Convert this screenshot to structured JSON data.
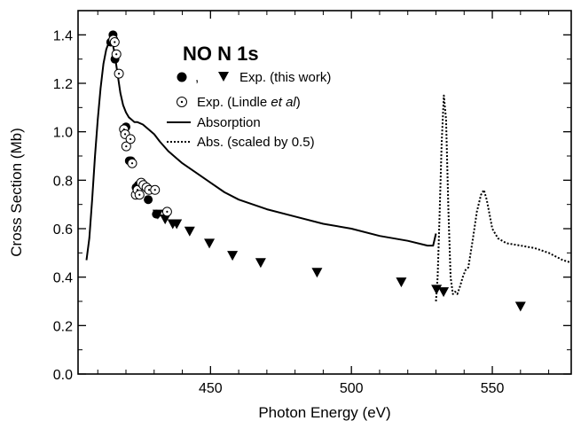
{
  "chart_data": {
    "type": "scatter",
    "title": "",
    "xlabel": "Photon Energy (eV)",
    "ylabel": "Cross Section (Mb)",
    "xlim": [
      403,
      578
    ],
    "ylim": [
      0,
      1.5
    ],
    "grid": false,
    "legend_position": "top-right",
    "x_ticks": [
      450,
      500,
      550
    ],
    "x_tick_labels": [
      "450",
      "500",
      "550"
    ],
    "y_ticks": [
      0,
      0.2,
      0.4,
      0.6,
      0.8,
      1.0,
      1.2,
      1.4
    ],
    "y_tick_labels": [
      "0.0",
      "0.2",
      "0.4",
      "0.6",
      "0.8",
      "1.0",
      "1.2",
      "1.4"
    ],
    "annotation": "NO N 1s",
    "legend": {
      "comma": ",",
      "exp_this_work": "Exp. (this work)",
      "exp_lindle_prefix": "Exp. (Lindle ",
      "exp_lindle_italic": "et al",
      "exp_lindle_suffix": ")",
      "absorption": "Absorption",
      "abs_scaled": "Abs. (scaled by 0.5)"
    },
    "series": [
      {
        "name": "Exp. (this work)",
        "marker": "filled-circle",
        "x": [
          414.6,
          415.4,
          416.1,
          420.0,
          421.2,
          421.8,
          423.6,
          424.4,
          427.9,
          430.8
        ],
        "y": [
          1.37,
          1.4,
          1.3,
          1.02,
          0.88,
          0.88,
          0.77,
          0.78,
          0.72,
          0.66
        ]
      },
      {
        "name": "Exp. (this work)",
        "marker": "filled-triangle-down",
        "x": [
          431.3,
          433.9,
          436.6,
          438.0,
          442.6,
          449.6,
          457.8,
          467.8,
          487.8,
          517.7,
          530.2,
          532.7,
          560.0
        ],
        "y": [
          0.66,
          0.64,
          0.62,
          0.62,
          0.59,
          0.54,
          0.49,
          0.46,
          0.42,
          0.38,
          0.35,
          0.34,
          0.28
        ]
      },
      {
        "name": "Exp. (Lindle et al)",
        "marker": "dotted-circle",
        "x": [
          415.5,
          416.0,
          416.6,
          417.5,
          419.3,
          419.7,
          420.1,
          421.6,
          422.2,
          423.5,
          424.1,
          424.8,
          425.4,
          426.2,
          427.3,
          428.2,
          430.3,
          434.6
        ],
        "y": [
          1.38,
          1.37,
          1.32,
          1.24,
          1.01,
          0.99,
          0.94,
          0.97,
          0.87,
          0.74,
          0.76,
          0.74,
          0.79,
          0.78,
          0.77,
          0.76,
          0.76,
          0.67
        ]
      },
      {
        "name": "Absorption",
        "style": "solid-line",
        "x": [
          406,
          407,
          408,
          409,
          410,
          411,
          412,
          413,
          414,
          414.6,
          415.2,
          416,
          417,
          418,
          419,
          420,
          421,
          422,
          423,
          424,
          426,
          428,
          430,
          432,
          435,
          438,
          440,
          445,
          450,
          455,
          460,
          470,
          480,
          490,
          500,
          510,
          520,
          527,
          529,
          530
        ],
        "y": [
          0.47,
          0.56,
          0.72,
          0.9,
          1.05,
          1.18,
          1.28,
          1.34,
          1.37,
          1.38,
          1.37,
          1.32,
          1.24,
          1.16,
          1.11,
          1.08,
          1.06,
          1.05,
          1.04,
          1.04,
          1.03,
          1.01,
          0.99,
          0.96,
          0.92,
          0.89,
          0.87,
          0.83,
          0.79,
          0.75,
          0.72,
          0.68,
          0.65,
          0.62,
          0.6,
          0.57,
          0.55,
          0.53,
          0.53,
          0.58
        ]
      },
      {
        "name": "Abs. (scaled by 0.5)",
        "style": "dotted-line",
        "x": [
          530,
          530.6,
          531.2,
          532,
          532.8,
          533.6,
          534.4,
          535.2,
          536,
          536.8,
          537.6,
          538.5,
          539.5,
          540.5,
          541.5,
          543,
          544.5,
          546,
          547,
          548,
          549,
          550,
          552,
          555,
          560,
          565,
          570,
          575,
          578
        ],
        "y": [
          0.3,
          0.4,
          0.62,
          0.95,
          1.15,
          1.05,
          0.68,
          0.4,
          0.33,
          0.34,
          0.33,
          0.36,
          0.4,
          0.43,
          0.44,
          0.55,
          0.67,
          0.74,
          0.76,
          0.72,
          0.66,
          0.6,
          0.56,
          0.54,
          0.53,
          0.52,
          0.5,
          0.47,
          0.46
        ]
      }
    ]
  }
}
